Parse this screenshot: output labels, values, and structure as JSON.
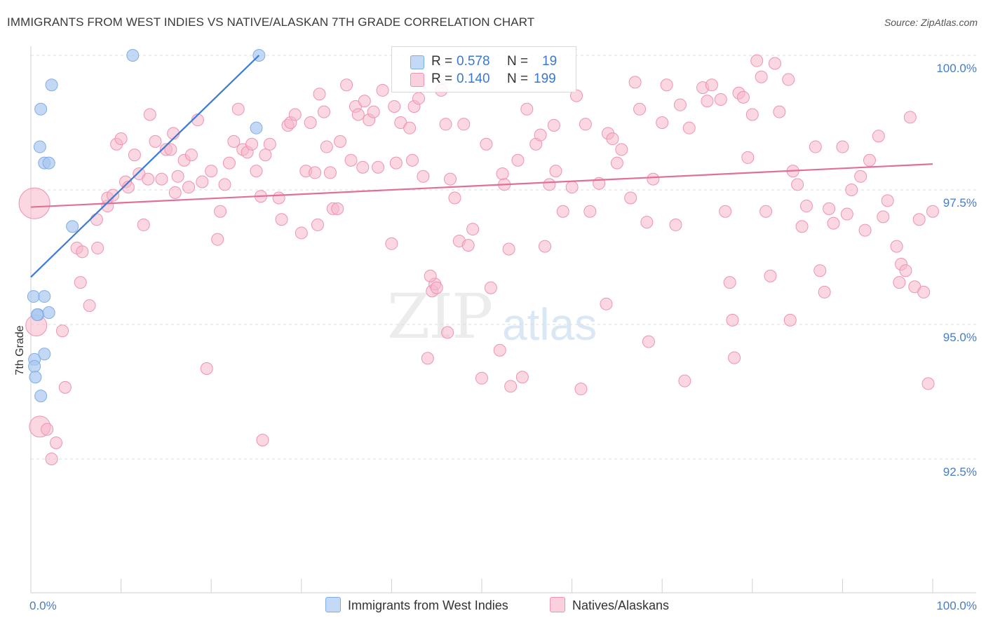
{
  "header": {
    "title": "IMMIGRANTS FROM WEST INDIES VS NATIVE/ALASKAN 7TH GRADE CORRELATION CHART",
    "source": "Source: ZipAtlas.com"
  },
  "watermark": {
    "zip": "ZIP",
    "atlas": "atlas"
  },
  "legend_top": {
    "rows": [
      {
        "r_label": "R =",
        "r_value": "0.578",
        "n_label": "N =",
        "n_value": "19",
        "color": "#a9c8f0"
      },
      {
        "r_label": "R =",
        "r_value": "0.140",
        "n_label": "N =",
        "n_value": "199",
        "color": "#f7b6cb"
      }
    ]
  },
  "legend_bottom": {
    "items": [
      {
        "label": "Immigrants from West Indies",
        "color": "#a9c8f0"
      },
      {
        "label": "Natives/Alaskans",
        "color": "#f7b6cb"
      }
    ]
  },
  "chart_data": {
    "type": "scatter",
    "title": "IMMIGRANTS FROM WEST INDIES VS NATIVE/ALASKAN 7TH GRADE CORRELATION CHART",
    "xlabel": "",
    "ylabel": "7th Grade",
    "xlim": [
      0,
      100
    ],
    "ylim": [
      90.0,
      100.3
    ],
    "x_tick_labels": [
      {
        "value": 0,
        "label": "0.0%"
      },
      {
        "value": 100,
        "label": "100.0%"
      }
    ],
    "y_tick_labels": [
      {
        "value": 100.0,
        "label": "100.0%"
      },
      {
        "value": 97.5,
        "label": "97.5%"
      },
      {
        "value": 95.0,
        "label": "95.0%"
      },
      {
        "value": 92.5,
        "label": "92.5%"
      }
    ],
    "grid": true,
    "series": [
      {
        "name": "Immigrants from West Indies",
        "color": "#7eaee8",
        "fill": "#a9c8f0",
        "trend": {
          "x0": 0,
          "y0": 95.88,
          "x1": 25.3,
          "y1": 100.0,
          "color": "#3a7bd5"
        },
        "points": [
          [
            11.3,
            100.0
          ],
          [
            25.3,
            100.0
          ],
          [
            2.3,
            99.45
          ],
          [
            1.1,
            99.0
          ],
          [
            25.0,
            98.65
          ],
          [
            1.0,
            98.3
          ],
          [
            1.5,
            98.0
          ],
          [
            2.0,
            98.0
          ],
          [
            4.6,
            96.82
          ],
          [
            0.3,
            95.52
          ],
          [
            1.5,
            95.52
          ],
          [
            0.8,
            95.18
          ],
          [
            2.0,
            95.22
          ],
          [
            1.5,
            94.45
          ],
          [
            0.4,
            94.35
          ],
          [
            0.4,
            94.22
          ],
          [
            0.5,
            94.02
          ],
          [
            1.1,
            93.67
          ],
          [
            0.7,
            95.18
          ]
        ]
      },
      {
        "name": "Natives/Alaskans",
        "color": "#ee93b2",
        "fill": "#f7b6cb",
        "trend": {
          "x0": 0,
          "y0": 97.18,
          "x1": 100,
          "y1": 97.98,
          "color": "#e0709a"
        },
        "points": [
          [
            0.4,
            97.25
          ],
          [
            0.6,
            94.98
          ],
          [
            1.0,
            93.1
          ],
          [
            1.8,
            93.05
          ],
          [
            2.3,
            92.5
          ],
          [
            2.8,
            92.8
          ],
          [
            3.8,
            93.83
          ],
          [
            3.5,
            94.88
          ],
          [
            5.1,
            96.42
          ],
          [
            5.5,
            95.78
          ],
          [
            6.5,
            95.35
          ],
          [
            7.4,
            96.42
          ],
          [
            5.7,
            96.35
          ],
          [
            7.3,
            96.95
          ],
          [
            8.5,
            97.2
          ],
          [
            8.5,
            97.35
          ],
          [
            9.1,
            97.4
          ],
          [
            9.5,
            98.35
          ],
          [
            10.0,
            98.45
          ],
          [
            10.5,
            97.65
          ],
          [
            10.8,
            97.55
          ],
          [
            11.5,
            98.15
          ],
          [
            12.0,
            97.8
          ],
          [
            12.5,
            96.85
          ],
          [
            13.0,
            97.7
          ],
          [
            13.2,
            98.9
          ],
          [
            13.8,
            98.4
          ],
          [
            14.5,
            97.7
          ],
          [
            15.0,
            98.25
          ],
          [
            15.5,
            98.25
          ],
          [
            15.8,
            98.55
          ],
          [
            16.3,
            97.75
          ],
          [
            16.0,
            97.45
          ],
          [
            17.0,
            98.05
          ],
          [
            17.5,
            97.55
          ],
          [
            17.8,
            98.15
          ],
          [
            18.5,
            98.8
          ],
          [
            19.0,
            97.65
          ],
          [
            19.5,
            94.18
          ],
          [
            20.0,
            97.85
          ],
          [
            20.7,
            96.58
          ],
          [
            21.0,
            97.1
          ],
          [
            21.5,
            97.6
          ],
          [
            22.0,
            98.0
          ],
          [
            22.5,
            98.4
          ],
          [
            23.0,
            99.0
          ],
          [
            23.5,
            98.25
          ],
          [
            24.0,
            98.2
          ],
          [
            24.5,
            98.35
          ],
          [
            25.0,
            97.85
          ],
          [
            25.5,
            97.38
          ],
          [
            25.7,
            92.85
          ],
          [
            26.0,
            98.15
          ],
          [
            26.5,
            98.35
          ],
          [
            27.5,
            97.35
          ],
          [
            27.8,
            96.95
          ],
          [
            28.5,
            98.7
          ],
          [
            28.8,
            98.75
          ],
          [
            29.3,
            98.9
          ],
          [
            30.0,
            96.7
          ],
          [
            30.5,
            97.85
          ],
          [
            31.0,
            98.75
          ],
          [
            31.5,
            97.82
          ],
          [
            31.8,
            96.85
          ],
          [
            32.0,
            99.28
          ],
          [
            32.5,
            98.95
          ],
          [
            32.8,
            98.3
          ],
          [
            33.2,
            97.82
          ],
          [
            33.5,
            97.15
          ],
          [
            34.0,
            97.15
          ],
          [
            34.3,
            98.4
          ],
          [
            35.0,
            99.45
          ],
          [
            35.5,
            98.05
          ],
          [
            36.0,
            99.05
          ],
          [
            36.3,
            98.9
          ],
          [
            36.8,
            97.92
          ],
          [
            37.0,
            99.15
          ],
          [
            37.5,
            98.8
          ],
          [
            38.0,
            98.95
          ],
          [
            38.5,
            97.92
          ],
          [
            39.0,
            99.35
          ],
          [
            40.0,
            96.5
          ],
          [
            40.3,
            99.05
          ],
          [
            40.5,
            98.0
          ],
          [
            41.0,
            98.75
          ],
          [
            42.0,
            98.65
          ],
          [
            42.3,
            98.05
          ],
          [
            42.5,
            99.05
          ],
          [
            43.0,
            99.2
          ],
          [
            43.5,
            97.75
          ],
          [
            44.0,
            94.37
          ],
          [
            44.5,
            95.62
          ],
          [
            44.8,
            95.75
          ],
          [
            45.5,
            99.35
          ],
          [
            46.0,
            98.72
          ],
          [
            46.5,
            97.7
          ],
          [
            47.0,
            97.35
          ],
          [
            47.5,
            96.55
          ],
          [
            48.0,
            98.72
          ],
          [
            48.5,
            96.47
          ],
          [
            49.0,
            96.77
          ],
          [
            50.0,
            94.0
          ],
          [
            50.5,
            98.35
          ],
          [
            51.0,
            95.68
          ],
          [
            52.0,
            94.52
          ],
          [
            52.3,
            97.8
          ],
          [
            52.5,
            97.6
          ],
          [
            53.0,
            96.4
          ],
          [
            54.0,
            98.05
          ],
          [
            55.0,
            99.0
          ],
          [
            56.0,
            98.35
          ],
          [
            56.5,
            98.52
          ],
          [
            57.0,
            96.45
          ],
          [
            57.5,
            97.6
          ],
          [
            58.0,
            98.7
          ],
          [
            58.2,
            97.85
          ],
          [
            59.0,
            97.1
          ],
          [
            60.0,
            97.55
          ],
          [
            60.5,
            99.25
          ],
          [
            61.5,
            98.72
          ],
          [
            62.0,
            97.1
          ],
          [
            63.0,
            97.62
          ],
          [
            64.0,
            98.55
          ],
          [
            64.5,
            98.45
          ],
          [
            65.0,
            98.0
          ],
          [
            65.5,
            98.25
          ],
          [
            66.5,
            97.35
          ],
          [
            67.0,
            99.5
          ],
          [
            67.5,
            99.0
          ],
          [
            68.3,
            96.9
          ],
          [
            69.0,
            97.7
          ],
          [
            70.0,
            98.75
          ],
          [
            70.5,
            99.45
          ],
          [
            71.5,
            96.85
          ],
          [
            72.0,
            99.08
          ],
          [
            73.0,
            98.65
          ],
          [
            74.5,
            99.4
          ],
          [
            75.0,
            99.15
          ],
          [
            75.5,
            99.45
          ],
          [
            76.5,
            99.18
          ],
          [
            77.0,
            97.1
          ],
          [
            77.5,
            95.78
          ],
          [
            78.0,
            94.38
          ],
          [
            78.5,
            99.3
          ],
          [
            79.0,
            99.22
          ],
          [
            79.5,
            98.1
          ],
          [
            80.0,
            98.9
          ],
          [
            81.0,
            99.6
          ],
          [
            81.5,
            97.1
          ],
          [
            82.0,
            95.9
          ],
          [
            83.0,
            98.95
          ],
          [
            84.0,
            99.55
          ],
          [
            84.5,
            97.85
          ],
          [
            85.0,
            97.6
          ],
          [
            85.5,
            96.82
          ],
          [
            86.0,
            97.2
          ],
          [
            87.0,
            98.3
          ],
          [
            88.0,
            95.6
          ],
          [
            88.5,
            97.15
          ],
          [
            89.0,
            96.88
          ],
          [
            90.0,
            98.3
          ],
          [
            90.5,
            97.05
          ],
          [
            91.0,
            97.5
          ],
          [
            92.0,
            97.75
          ],
          [
            92.5,
            96.75
          ],
          [
            93.0,
            98.05
          ],
          [
            94.0,
            98.5
          ],
          [
            94.5,
            97.0
          ],
          [
            95.0,
            97.3
          ],
          [
            96.0,
            96.45
          ],
          [
            96.3,
            95.78
          ],
          [
            96.5,
            96.12
          ],
          [
            97.0,
            96.0
          ],
          [
            97.5,
            98.85
          ],
          [
            98.0,
            95.7
          ],
          [
            98.5,
            96.95
          ],
          [
            99.0,
            95.6
          ],
          [
            99.5,
            93.9
          ],
          [
            100.0,
            97.1
          ],
          [
            44.3,
            95.9
          ],
          [
            45.0,
            95.68
          ],
          [
            46.2,
            94.85
          ],
          [
            53.2,
            93.85
          ],
          [
            54.5,
            94.02
          ],
          [
            61.0,
            93.8
          ],
          [
            63.8,
            95.38
          ],
          [
            68.5,
            94.68
          ],
          [
            72.5,
            93.95
          ],
          [
            77.8,
            95.08
          ],
          [
            84.2,
            95.08
          ],
          [
            87.5,
            96.0
          ],
          [
            82.5,
            99.85
          ],
          [
            80.5,
            99.9
          ]
        ]
      }
    ]
  }
}
